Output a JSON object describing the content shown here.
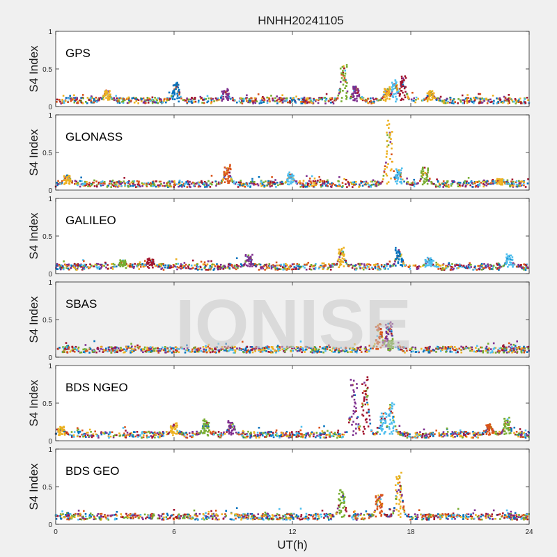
{
  "title": "HNHH20241105",
  "xlabel": "UT(h)",
  "ylabel": "S4 Index",
  "watermark": "IONISE",
  "xticks": [
    "0",
    "6",
    "12",
    "18",
    "24"
  ],
  "yticks": [
    "0",
    "0.5",
    "1"
  ],
  "colors": [
    "#0072BD",
    "#D95319",
    "#EDB120",
    "#7E2F8E",
    "#77AC30",
    "#4DBEEE",
    "#A2142F"
  ],
  "chart_data": [
    {
      "type": "scatter",
      "panel": "GPS",
      "xlim": [
        0,
        24
      ],
      "ylim": [
        0,
        1
      ],
      "background": "#ffffff",
      "baseline": 0.08,
      "spikes": [
        {
          "x": 2.6,
          "peak": 0.22,
          "series": 2
        },
        {
          "x": 6.1,
          "peak": 0.32,
          "series": 0
        },
        {
          "x": 8.6,
          "peak": 0.23,
          "series": 3
        },
        {
          "x": 14.6,
          "peak": 0.55,
          "series": 4
        },
        {
          "x": 15.2,
          "peak": 0.28,
          "series": 3
        },
        {
          "x": 16.8,
          "peak": 0.25,
          "series": 2
        },
        {
          "x": 17.2,
          "peak": 0.35,
          "series": 5
        },
        {
          "x": 17.6,
          "peak": 0.4,
          "series": 6
        },
        {
          "x": 19.0,
          "peak": 0.2,
          "series": 2
        }
      ]
    },
    {
      "type": "scatter",
      "panel": "GLONASS",
      "xlim": [
        0,
        24
      ],
      "ylim": [
        0,
        1
      ],
      "background": "#ffffff",
      "baseline": 0.08,
      "spikes": [
        {
          "x": 0.6,
          "peak": 0.2,
          "series": 2
        },
        {
          "x": 8.7,
          "peak": 0.32,
          "series": 1
        },
        {
          "x": 11.9,
          "peak": 0.22,
          "series": 5
        },
        {
          "x": 16.9,
          "peak": 0.92,
          "series": 2
        },
        {
          "x": 17.4,
          "peak": 0.28,
          "series": 5
        },
        {
          "x": 18.7,
          "peak": 0.3,
          "series": 4
        },
        {
          "x": 22.5,
          "peak": 0.15,
          "series": 2
        }
      ]
    },
    {
      "type": "scatter",
      "panel": "GALILEO",
      "xlim": [
        0,
        24
      ],
      "ylim": [
        0,
        1
      ],
      "background": "#ffffff",
      "baseline": 0.09,
      "spikes": [
        {
          "x": 3.4,
          "peak": 0.18,
          "series": 4
        },
        {
          "x": 4.8,
          "peak": 0.2,
          "series": 6
        },
        {
          "x": 9.8,
          "peak": 0.25,
          "series": 3
        },
        {
          "x": 14.5,
          "peak": 0.33,
          "series": 2
        },
        {
          "x": 17.4,
          "peak": 0.33,
          "series": 0
        },
        {
          "x": 18.9,
          "peak": 0.2,
          "series": 5
        },
        {
          "x": 23.0,
          "peak": 0.25,
          "series": 5
        }
      ]
    },
    {
      "type": "scatter",
      "panel": "SBAS",
      "xlim": [
        0,
        24
      ],
      "ylim": [
        0,
        1
      ],
      "background": "#f0f0f0",
      "baseline": 0.1,
      "spikes": [
        {
          "x": 16.4,
          "peak": 0.45,
          "series": 1
        },
        {
          "x": 16.9,
          "peak": 0.47,
          "series": 3
        },
        {
          "x": 17.0,
          "peak": 0.22,
          "series": 4
        }
      ]
    },
    {
      "type": "scatter",
      "panel": "BDS NGEO",
      "xlim": [
        0,
        24
      ],
      "ylim": [
        0,
        1
      ],
      "background": "#ffffff",
      "baseline": 0.08,
      "spikes": [
        {
          "x": 0.3,
          "peak": 0.18,
          "series": 2
        },
        {
          "x": 6.0,
          "peak": 0.22,
          "series": 2
        },
        {
          "x": 7.6,
          "peak": 0.27,
          "series": 4
        },
        {
          "x": 8.9,
          "peak": 0.25,
          "series": 3
        },
        {
          "x": 15.1,
          "peak": 0.82,
          "series": 3
        },
        {
          "x": 15.7,
          "peak": 0.86,
          "series": 6
        },
        {
          "x": 16.6,
          "peak": 0.38,
          "series": 5
        },
        {
          "x": 17.0,
          "peak": 0.51,
          "series": 5
        },
        {
          "x": 22.0,
          "peak": 0.22,
          "series": 1
        },
        {
          "x": 22.9,
          "peak": 0.3,
          "series": 4
        }
      ]
    },
    {
      "type": "scatter",
      "panel": "BDS GEO",
      "xlim": [
        0,
        24
      ],
      "ylim": [
        0,
        1
      ],
      "background": "#ffffff",
      "baseline": 0.1,
      "spikes": [
        {
          "x": 14.5,
          "peak": 0.45,
          "series": 4
        },
        {
          "x": 16.4,
          "peak": 0.4,
          "series": 1
        },
        {
          "x": 17.4,
          "peak": 0.68,
          "series": 2
        }
      ]
    }
  ]
}
